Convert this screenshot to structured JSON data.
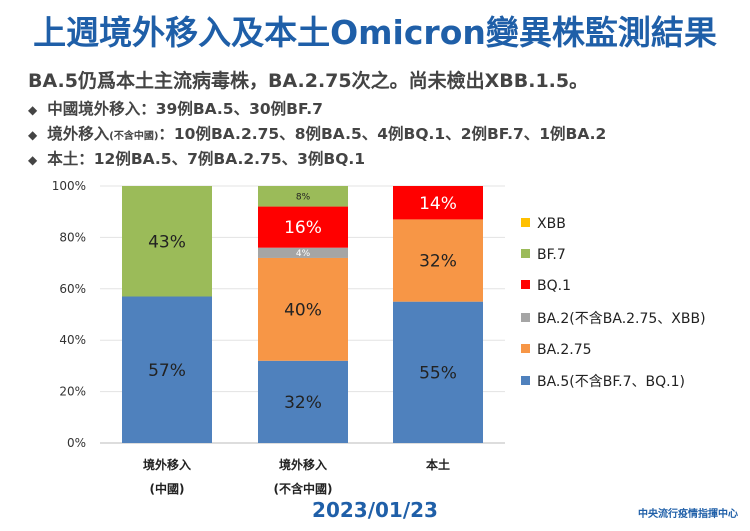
{
  "title": "上週境外移入及本土Omicron變異株監測結果",
  "summary": "BA.5仍爲本土主流病毒株，BA.2.75次之。尚未檢出XBB.1.5。",
  "bullets": [
    {
      "label": "中國境外移入",
      "note": "",
      "text": "：39例BA.5、30例BF.7"
    },
    {
      "label": "境外移入",
      "note": "(不含中國)",
      "text": "：10例BA.2.75、8例BA.5、4例BQ.1、2例BF.7、1例BA.2"
    },
    {
      "label": "本土",
      "note": "",
      "text": "：12例BA.5、7例BA.2.75、3例BQ.1"
    }
  ],
  "date": "2023/01/23",
  "org": "中央流行疫情指揮中心",
  "chart_data": {
    "type": "bar",
    "stacked": true,
    "categories": [
      [
        "境外移入",
        "(中國)"
      ],
      [
        "境外移入",
        "(不含中國)"
      ],
      [
        "本土",
        ""
      ]
    ],
    "ylim": [
      0,
      100
    ],
    "yticks": [
      "0%",
      "20%",
      "40%",
      "60%",
      "80%",
      "100%"
    ],
    "legend_position": "right",
    "series": [
      {
        "name": "BA.5(不含BF.7、BQ.1)",
        "color": "#4f81bd",
        "values": [
          57,
          32,
          55
        ]
      },
      {
        "name": "BA.2.75",
        "color": "#f79646",
        "values": [
          0,
          40,
          32
        ]
      },
      {
        "name": "BA.2(不含BA.2.75、XBB)",
        "color": "#a5a5a5",
        "values": [
          0,
          4,
          0
        ]
      },
      {
        "name": "BQ.1",
        "color": "#ff0000",
        "values": [
          0,
          16,
          14
        ]
      },
      {
        "name": "BF.7",
        "color": "#9bbb59",
        "values": [
          43,
          8,
          0
        ]
      },
      {
        "name": "XBB",
        "color": "#ffc000",
        "values": [
          0,
          0,
          0
        ]
      }
    ]
  }
}
